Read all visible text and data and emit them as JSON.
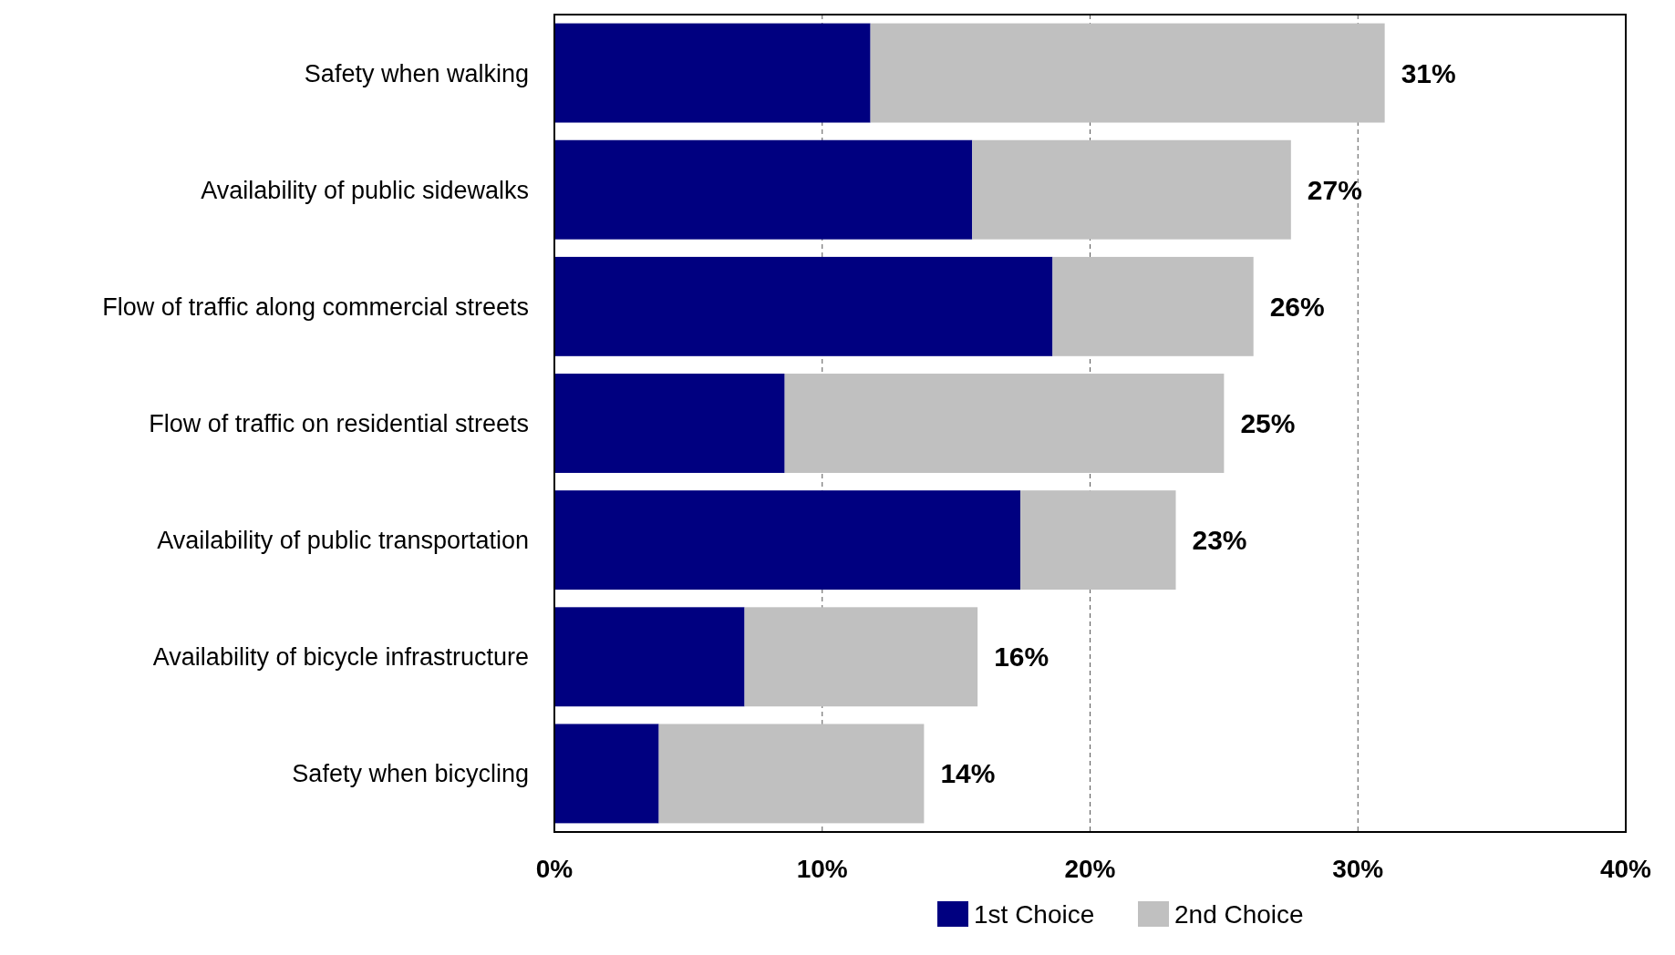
{
  "chart_data": {
    "type": "bar",
    "orientation": "horizontal",
    "stacked": true,
    "categories": [
      "Safety when walking",
      "Availability of public sidewalks",
      "Flow of traffic along commercial streets",
      "Flow of traffic on residential streets",
      "Availability of public transportation",
      "Availability of bicycle infrastructure",
      "Safety when bicycling"
    ],
    "series": [
      {
        "name": "1st Choice",
        "color": "#000080",
        "values": [
          11.8,
          15.6,
          18.6,
          8.6,
          17.4,
          7.1,
          3.9
        ]
      },
      {
        "name": "2nd Choice",
        "color": "#c0c0c0",
        "values": [
          19.2,
          11.9,
          7.5,
          16.4,
          5.8,
          8.7,
          9.9
        ]
      }
    ],
    "totals": [
      "31%",
      "27%",
      "26%",
      "25%",
      "23%",
      "16%",
      "14%"
    ],
    "xlim": [
      0,
      40
    ],
    "xticks": [
      {
        "value": 0,
        "label": "0%"
      },
      {
        "value": 10,
        "label": "10%"
      },
      {
        "value": 20,
        "label": "20%"
      },
      {
        "value": 30,
        "label": "30%"
      },
      {
        "value": 40,
        "label": "40%"
      }
    ],
    "grid": "x",
    "legend": "bottom"
  }
}
